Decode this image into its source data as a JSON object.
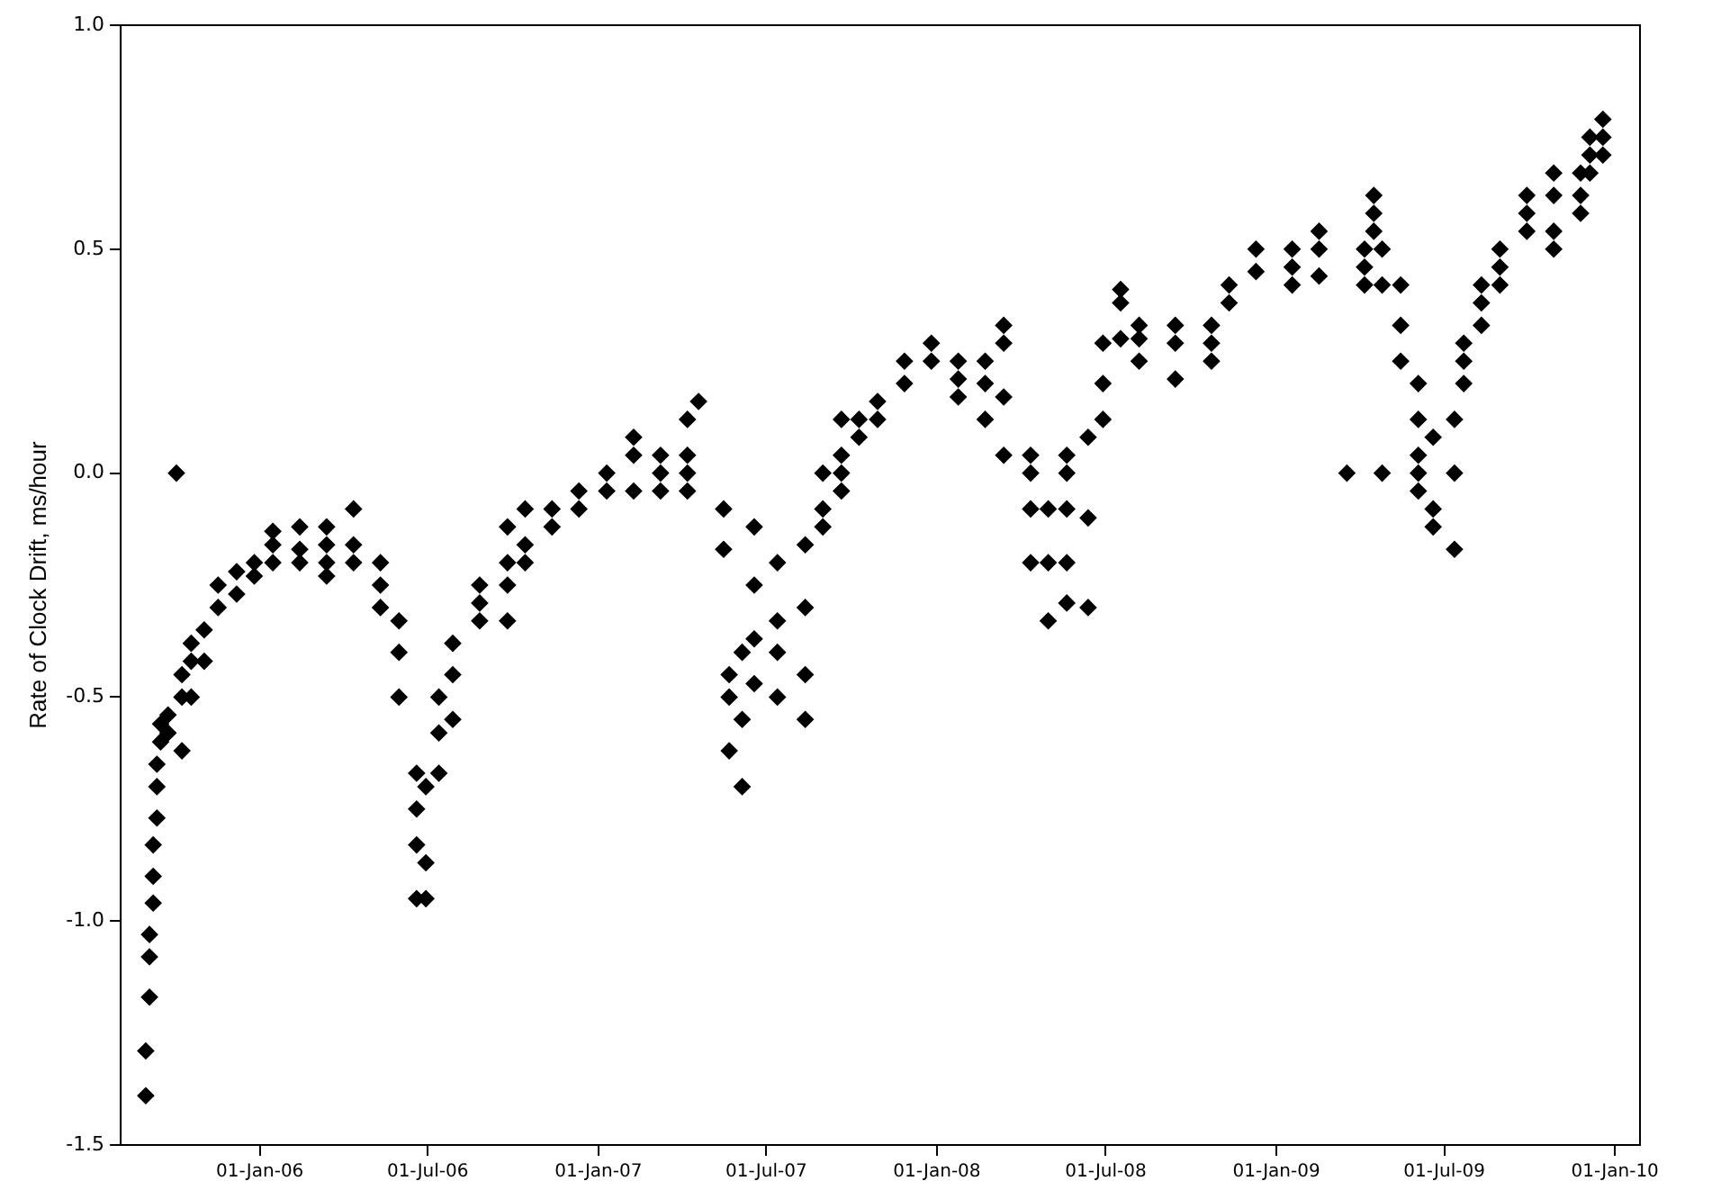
{
  "chart_data": {
    "type": "scatter",
    "ylabel": "Rate of Clock Drift, ms/hour",
    "marker": "diamond",
    "grid": false,
    "legend": false,
    "xlim": [
      "2005-08-04",
      "2010-01-28"
    ],
    "xticks": [
      {
        "value": "2006-01-01",
        "label": "01-Jan-06"
      },
      {
        "value": "2006-07-01",
        "label": "01-Jul-06"
      },
      {
        "value": "2007-01-01",
        "label": "01-Jan-07"
      },
      {
        "value": "2007-07-01",
        "label": "01-Jul-07"
      },
      {
        "value": "2008-01-01",
        "label": "01-Jan-08"
      },
      {
        "value": "2008-07-01",
        "label": "01-Jul-08"
      },
      {
        "value": "2009-01-01",
        "label": "01-Jan-09"
      },
      {
        "value": "2009-07-01",
        "label": "01-Jul-09"
      },
      {
        "value": "2010-01-01",
        "label": "01-Jan-10"
      }
    ],
    "ylim": [
      -1.5,
      1.0
    ],
    "yticks": [
      -1.5,
      {
        "value": -1.0,
        "label": "-1.0"
      },
      -0.5,
      {
        "value": 0.0,
        "label": "0.0"
      },
      0.5,
      {
        "value": 1.0,
        "label": "1.0"
      }
    ],
    "series": [
      {
        "color": "#000000",
        "x": [
          "2005-08-31",
          "2005-08-31",
          "2005-09-04",
          "2005-09-04",
          "2005-09-04",
          "2005-09-08",
          "2005-09-08",
          "2005-09-08",
          "2005-09-12",
          "2005-09-12",
          "2005-09-12",
          "2005-09-16",
          "2005-09-16",
          "2005-09-24",
          "2005-09-24",
          "2005-10-03",
          "2005-10-09",
          "2005-10-09",
          "2005-10-09",
          "2005-10-19",
          "2005-10-19",
          "2005-10-19",
          "2005-11-02",
          "2005-11-02",
          "2005-11-17",
          "2005-11-17",
          "2005-12-07",
          "2005-12-07",
          "2005-12-26",
          "2005-12-26",
          "2006-01-15",
          "2006-01-15",
          "2006-01-15",
          "2006-02-13",
          "2006-02-13",
          "2006-02-13",
          "2006-03-14",
          "2006-03-14",
          "2006-03-14",
          "2006-03-14",
          "2006-04-12",
          "2006-04-12",
          "2006-04-12",
          "2006-05-11",
          "2006-05-11",
          "2006-05-11",
          "2006-05-31",
          "2006-05-31",
          "2006-05-31",
          "2006-06-19",
          "2006-06-19",
          "2006-06-19",
          "2006-06-19",
          "2006-06-29",
          "2006-06-29",
          "2006-06-29",
          "2006-07-13",
          "2006-07-13",
          "2006-07-13",
          "2006-07-28",
          "2006-07-28",
          "2006-07-28",
          "2006-08-26",
          "2006-08-26",
          "2006-08-26",
          "2006-09-25",
          "2006-09-25",
          "2006-09-25",
          "2006-09-25",
          "2006-10-14",
          "2006-10-14",
          "2006-10-14",
          "2006-11-12",
          "2006-11-12",
          "2006-12-11",
          "2006-12-11",
          "2007-01-10",
          "2007-01-10",
          "2007-02-08",
          "2007-02-08",
          "2007-02-08",
          "2007-03-09",
          "2007-03-09",
          "2007-03-09",
          "2007-04-07",
          "2007-04-07",
          "2007-04-07",
          "2007-04-07",
          "2007-04-19",
          "2007-05-16",
          "2007-05-16",
          "2007-05-22",
          "2007-05-22",
          "2007-05-22",
          "2007-06-05",
          "2007-06-05",
          "2007-06-05",
          "2007-06-18",
          "2007-06-18",
          "2007-06-18",
          "2007-06-18",
          "2007-07-13",
          "2007-07-13",
          "2007-07-13",
          "2007-07-13",
          "2007-08-12",
          "2007-08-12",
          "2007-08-12",
          "2007-08-12",
          "2007-08-31",
          "2007-08-31",
          "2007-08-31",
          "2007-09-20",
          "2007-09-20",
          "2007-09-20",
          "2007-09-20",
          "2007-10-09",
          "2007-10-09",
          "2007-10-29",
          "2007-10-29",
          "2007-11-27",
          "2007-11-27",
          "2007-12-26",
          "2007-12-26",
          "2008-01-24",
          "2008-01-24",
          "2008-01-24",
          "2008-02-22",
          "2008-02-22",
          "2008-02-22",
          "2008-03-13",
          "2008-03-13",
          "2008-03-13",
          "2008-03-13",
          "2008-04-11",
          "2008-04-11",
          "2008-04-11",
          "2008-04-11",
          "2008-04-30",
          "2008-04-30",
          "2008-04-30",
          "2008-05-20",
          "2008-05-20",
          "2008-05-20",
          "2008-05-20",
          "2008-05-20",
          "2008-06-12",
          "2008-06-12",
          "2008-06-12",
          "2008-06-28",
          "2008-06-28",
          "2008-06-28",
          "2008-07-17",
          "2008-07-17",
          "2008-07-17",
          "2008-08-06",
          "2008-08-06",
          "2008-08-06",
          "2008-09-14",
          "2008-09-14",
          "2008-09-14",
          "2008-10-23",
          "2008-10-23",
          "2008-10-23",
          "2008-11-11",
          "2008-11-11",
          "2008-12-10",
          "2008-12-10",
          "2009-01-18",
          "2009-01-18",
          "2009-01-18",
          "2009-02-16",
          "2009-02-16",
          "2009-02-16",
          "2009-03-18",
          "2009-04-06",
          "2009-04-06",
          "2009-04-06",
          "2009-04-16",
          "2009-04-16",
          "2009-04-16",
          "2009-04-25",
          "2009-04-25",
          "2009-04-25",
          "2009-05-15",
          "2009-05-15",
          "2009-05-15",
          "2009-06-03",
          "2009-06-03",
          "2009-06-03",
          "2009-06-03",
          "2009-06-03",
          "2009-06-19",
          "2009-06-19",
          "2009-06-19",
          "2009-07-12",
          "2009-07-12",
          "2009-07-12",
          "2009-07-22",
          "2009-07-22",
          "2009-07-22",
          "2009-08-10",
          "2009-08-10",
          "2009-08-10",
          "2009-08-30",
          "2009-08-30",
          "2009-08-30",
          "2009-09-28",
          "2009-09-28",
          "2009-09-28",
          "2009-10-27",
          "2009-10-27",
          "2009-10-27",
          "2009-10-27",
          "2009-11-25",
          "2009-11-25",
          "2009-11-25",
          "2009-12-05",
          "2009-12-05",
          "2009-12-05",
          "2009-12-19",
          "2009-12-19",
          "2009-12-19"
        ],
        "values": [
          -1.39,
          -1.29,
          -1.17,
          -1.08,
          -1.03,
          -0.96,
          -0.9,
          -0.83,
          -0.77,
          -0.7,
          -0.65,
          -0.6,
          -0.56,
          -0.54,
          -0.58,
          0.0,
          -0.5,
          -0.45,
          -0.62,
          -0.42,
          -0.38,
          -0.5,
          -0.35,
          -0.42,
          -0.3,
          -0.25,
          -0.27,
          -0.22,
          -0.2,
          -0.23,
          -0.2,
          -0.16,
          -0.13,
          -0.17,
          -0.12,
          -0.2,
          -0.16,
          -0.12,
          -0.2,
          -0.23,
          -0.16,
          -0.08,
          -0.2,
          -0.2,
          -0.25,
          -0.3,
          -0.33,
          -0.4,
          -0.5,
          -0.67,
          -0.83,
          -0.95,
          -0.75,
          -0.7,
          -0.95,
          -0.87,
          -0.58,
          -0.67,
          -0.5,
          -0.45,
          -0.38,
          -0.55,
          -0.33,
          -0.29,
          -0.25,
          -0.25,
          -0.2,
          -0.12,
          -0.33,
          -0.16,
          -0.08,
          -0.2,
          -0.12,
          -0.08,
          -0.08,
          -0.04,
          -0.04,
          0.0,
          -0.04,
          0.04,
          0.08,
          0.0,
          -0.04,
          0.04,
          0.0,
          0.12,
          0.04,
          -0.04,
          0.16,
          -0.08,
          -0.17,
          -0.45,
          -0.62,
          -0.5,
          -0.4,
          -0.55,
          -0.7,
          -0.25,
          -0.37,
          -0.47,
          -0.12,
          -0.33,
          -0.2,
          -0.4,
          -0.5,
          -0.3,
          -0.45,
          -0.55,
          -0.16,
          -0.08,
          -0.12,
          0.0,
          0.04,
          0.0,
          0.12,
          -0.04,
          0.12,
          0.08,
          0.12,
          0.16,
          0.25,
          0.2,
          0.29,
          0.25,
          0.21,
          0.25,
          0.17,
          0.2,
          0.25,
          0.12,
          0.29,
          0.33,
          0.17,
          0.04,
          0.0,
          0.04,
          -0.08,
          -0.2,
          -0.08,
          -0.2,
          -0.33,
          0.0,
          -0.2,
          -0.08,
          0.04,
          -0.29,
          -0.1,
          -0.3,
          0.08,
          0.12,
          0.2,
          0.29,
          0.38,
          0.41,
          0.3,
          0.33,
          0.25,
          0.3,
          0.29,
          0.33,
          0.21,
          0.33,
          0.25,
          0.29,
          0.38,
          0.42,
          0.45,
          0.5,
          0.5,
          0.46,
          0.42,
          0.54,
          0.5,
          0.44,
          0.0,
          0.5,
          0.46,
          0.42,
          0.58,
          0.62,
          0.54,
          0.5,
          0.42,
          0.0,
          0.42,
          0.33,
          0.25,
          0.2,
          0.12,
          0.04,
          0.0,
          -0.04,
          -0.08,
          0.08,
          -0.12,
          -0.17,
          0.12,
          0.0,
          0.2,
          0.25,
          0.29,
          0.38,
          0.42,
          0.33,
          0.5,
          0.46,
          0.42,
          0.54,
          0.62,
          0.58,
          0.62,
          0.67,
          0.54,
          0.5,
          0.62,
          0.67,
          0.58,
          0.67,
          0.71,
          0.75,
          0.79,
          0.75,
          0.71
        ]
      }
    ]
  }
}
